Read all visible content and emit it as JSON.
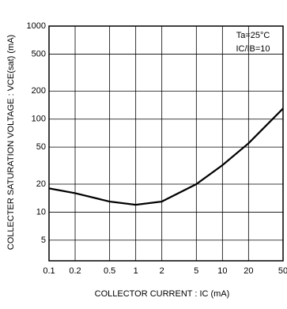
{
  "chart_data": {
    "type": "line",
    "x_label": "COLLECTOR  CURRENT : IC (mA)",
    "y_label": "COLLECTER SATURATION VOLTAGE : VCE(sat) (mA)",
    "annotations": [
      "Ta=25°C",
      "IC/IB=10"
    ],
    "x": [
      0.1,
      0.2,
      0.5,
      1,
      2,
      5,
      10,
      20,
      50
    ],
    "series": [
      {
        "name": "VCE(sat)",
        "color": "#000000",
        "values": [
          18,
          16,
          13,
          12,
          13,
          20,
          32,
          55,
          130
        ]
      }
    ],
    "xlim": [
      0.1,
      50
    ],
    "ylim": [
      3,
      1000
    ],
    "xticks": [
      0.1,
      0.2,
      0.5,
      1,
      2,
      5,
      10,
      20,
      50
    ],
    "yticks": [
      5,
      10,
      20,
      50,
      100,
      200,
      500,
      1000
    ],
    "log_x": true,
    "log_y": true,
    "grid": true
  }
}
